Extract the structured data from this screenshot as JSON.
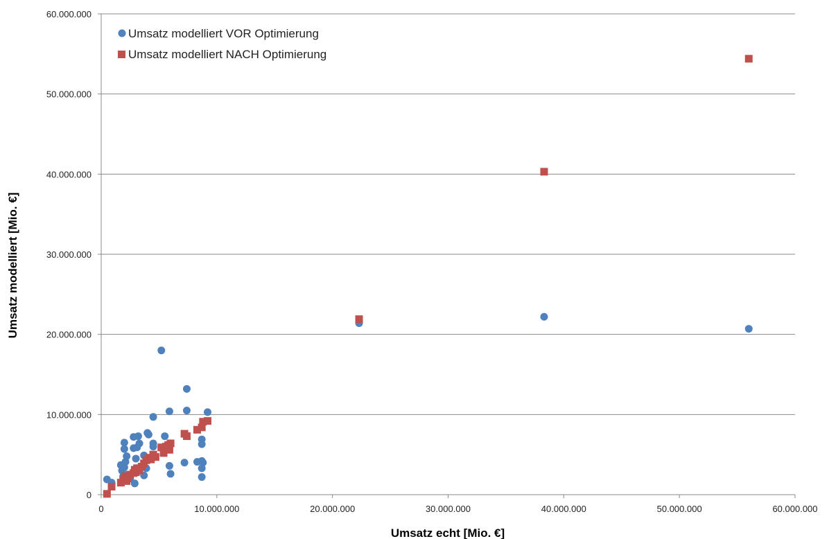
{
  "chart_data": {
    "type": "scatter",
    "title": "",
    "xlabel": "Umsatz echt [Mio. €]",
    "ylabel": "Umsatz modelliert [Mio. €]",
    "xlim": [
      0,
      60000000
    ],
    "ylim": [
      0,
      60000000
    ],
    "x_ticks": [
      0,
      10000000,
      20000000,
      30000000,
      40000000,
      50000000,
      60000000
    ],
    "y_ticks": [
      0,
      10000000,
      20000000,
      30000000,
      40000000,
      50000000,
      60000000
    ],
    "x_tick_labels": [
      "0",
      "10.000.000",
      "20.000.000",
      "30.000.000",
      "40.000.000",
      "50.000.000",
      "60.000.000"
    ],
    "y_tick_labels": [
      "0",
      "10.000.000",
      "20.000.000",
      "30.000.000",
      "40.000.000",
      "50.000.000",
      "60.000.000"
    ],
    "grid": "horizontal",
    "legend_position": "top-left",
    "colors": {
      "vor": "#4f81bd",
      "nach": "#c0504d",
      "grid": "#888888",
      "axis": "#888888"
    },
    "series": [
      {
        "name": "Umsatz modelliert VOR Optimierung",
        "marker": "circle",
        "x": [
          500000,
          900000,
          1700000,
          1800000,
          1900000,
          2000000,
          2000000,
          2100000,
          2200000,
          2300000,
          2000000,
          2500000,
          2800000,
          2800000,
          2900000,
          3000000,
          3000000,
          3100000,
          3200000,
          3300000,
          3700000,
          3700000,
          3900000,
          4000000,
          4100000,
          4500000,
          4500000,
          4500000,
          5200000,
          5400000,
          5500000,
          5900000,
          5900000,
          6000000,
          7200000,
          7400000,
          7400000,
          8300000,
          8700000,
          8700000,
          8700000,
          8700000,
          8700000,
          8800000,
          9200000,
          22300000,
          38300000,
          56000000
        ],
        "y": [
          1900000,
          1500000,
          3700000,
          3000000,
          2300000,
          6500000,
          5700000,
          4100000,
          4800000,
          2500000,
          3400000,
          2000000,
          7200000,
          5800000,
          1400000,
          4500000,
          3300000,
          5900000,
          7300000,
          6400000,
          4900000,
          2400000,
          3300000,
          7700000,
          7500000,
          6400000,
          6000000,
          9700000,
          18000000,
          5900000,
          7300000,
          10400000,
          3600000,
          2600000,
          4000000,
          13200000,
          10500000,
          4100000,
          6900000,
          6300000,
          4200000,
          3300000,
          2200000,
          4000000,
          10300000,
          21400000,
          22200000,
          20700000
        ]
      },
      {
        "name": "Umsatz modelliert NACH Optimierung",
        "marker": "square",
        "x": [
          500000,
          900000,
          1700000,
          1900000,
          2000000,
          2100000,
          2200000,
          2300000,
          2500000,
          2800000,
          2900000,
          3000000,
          3100000,
          3300000,
          3500000,
          3700000,
          3900000,
          4100000,
          4300000,
          4500000,
          4700000,
          5200000,
          5400000,
          5600000,
          5800000,
          5900000,
          6000000,
          7200000,
          7400000,
          8300000,
          8700000,
          8800000,
          9200000,
          22300000,
          38300000,
          56000000
        ],
        "y": [
          100000,
          1000000,
          1500000,
          1800000,
          2000000,
          2300000,
          1700000,
          2100000,
          2500000,
          2700000,
          3100000,
          2800000,
          3300000,
          3000000,
          3500000,
          3900000,
          4300000,
          4600000,
          4400000,
          5000000,
          4700000,
          5900000,
          5200000,
          6000000,
          6200000,
          5600000,
          6400000,
          7600000,
          7300000,
          8100000,
          8400000,
          9100000,
          9200000,
          21900000,
          40300000,
          54400000
        ]
      }
    ]
  }
}
